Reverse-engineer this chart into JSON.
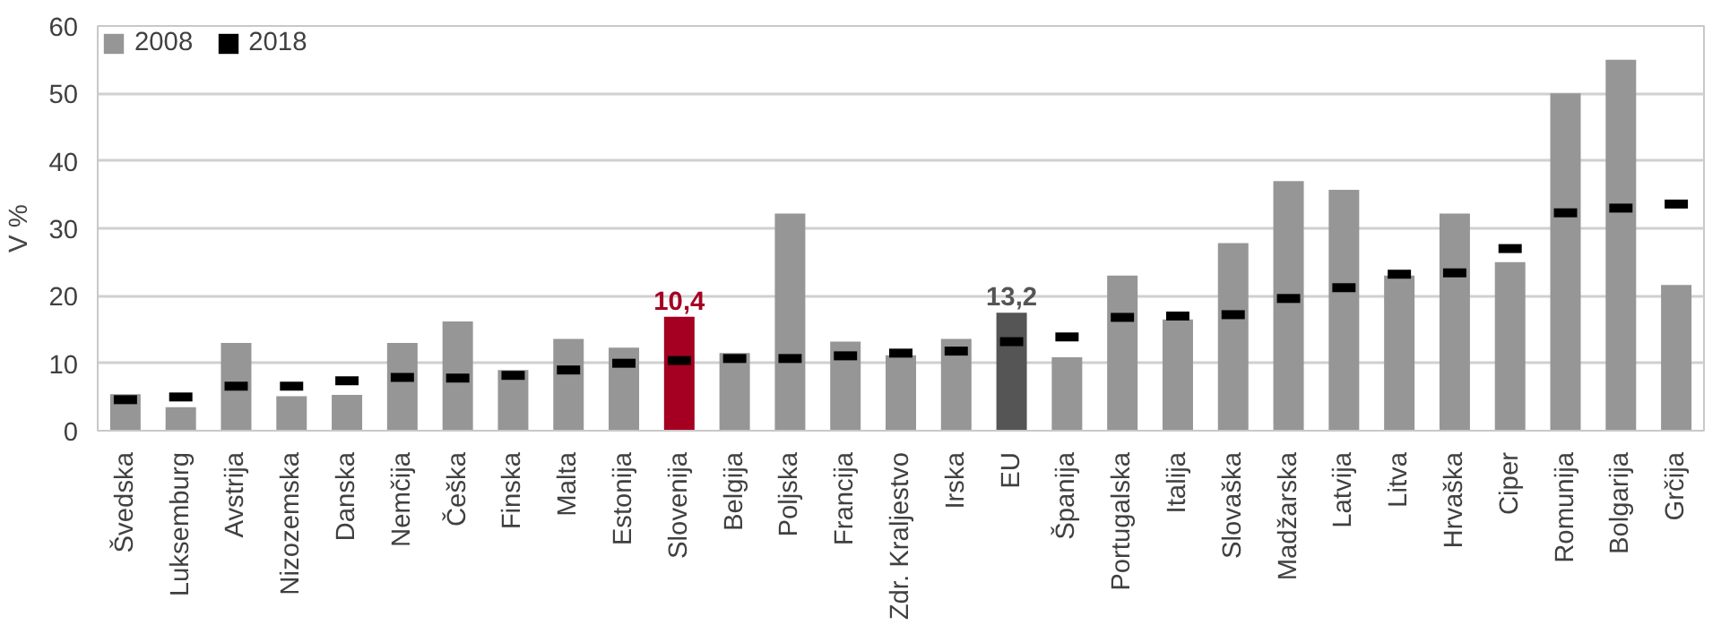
{
  "chart_data": {
    "type": "bar",
    "ylabel": "V %",
    "categories": [
      "Švedska",
      "Luksemburg",
      "Avstrija",
      "Nizozemska",
      "Danska",
      "Nemčija",
      "Češka",
      "Finska",
      "Malta",
      "Estonija",
      "Slovenija",
      "Belgija",
      "Poljska",
      "Francija",
      "Zdr. Kraljestvo",
      "Irska",
      "EU",
      "Španija",
      "Portugalska",
      "Italija",
      "Slovaška",
      "Madžarska",
      "Latvija",
      "Litva",
      "Hrvaška",
      "Ciper",
      "Romunija",
      "Bolgarija",
      "Grčija"
    ],
    "series": [
      {
        "name": "2008",
        "colors": [
          "#969696",
          "#969696",
          "#969696",
          "#969696",
          "#969696",
          "#969696",
          "#969696",
          "#969696",
          "#969696",
          "#969696",
          "#a50021",
          "#969696",
          "#969696",
          "#969696",
          "#969696",
          "#969696",
          "#555555",
          "#969696",
          "#969696",
          "#969696",
          "#969696",
          "#969696",
          "#969696",
          "#969696",
          "#969696",
          "#969696",
          "#969696",
          "#969696",
          "#969696"
        ],
        "values": [
          5.4,
          3.5,
          13,
          5.1,
          5.3,
          13,
          16.2,
          9,
          13.6,
          12.3,
          16.9,
          11.5,
          32.2,
          13.2,
          11.2,
          13.6,
          17.5,
          10.9,
          23,
          16.5,
          27.8,
          37,
          35.7,
          23,
          32.2,
          25,
          50,
          55,
          21.6
        ]
      },
      {
        "name": "2018",
        "type": "scatter",
        "marker": "square",
        "color": "#000000",
        "values": [
          4.6,
          5.0,
          6.6,
          6.6,
          7.4,
          7.9,
          7.8,
          8.2,
          9,
          10,
          10.4,
          10.7,
          10.7,
          11.1,
          11.5,
          11.8,
          13.2,
          13.9,
          16.8,
          17,
          17.2,
          19.6,
          21.2,
          23.2,
          23.4,
          27,
          32.3,
          33,
          33.6
        ],
        "value_labels": [
          null,
          null,
          null,
          null,
          null,
          null,
          null,
          null,
          null,
          null,
          "10,4",
          null,
          null,
          null,
          null,
          null,
          "13,2",
          null,
          null,
          null,
          null,
          null,
          null,
          null,
          null,
          null,
          null,
          null,
          null
        ]
      }
    ],
    "ylim": [
      0,
      60
    ],
    "yticks": [
      0,
      10,
      20,
      30,
      40,
      50,
      60
    ],
    "grid": "y",
    "legend": "top left"
  }
}
